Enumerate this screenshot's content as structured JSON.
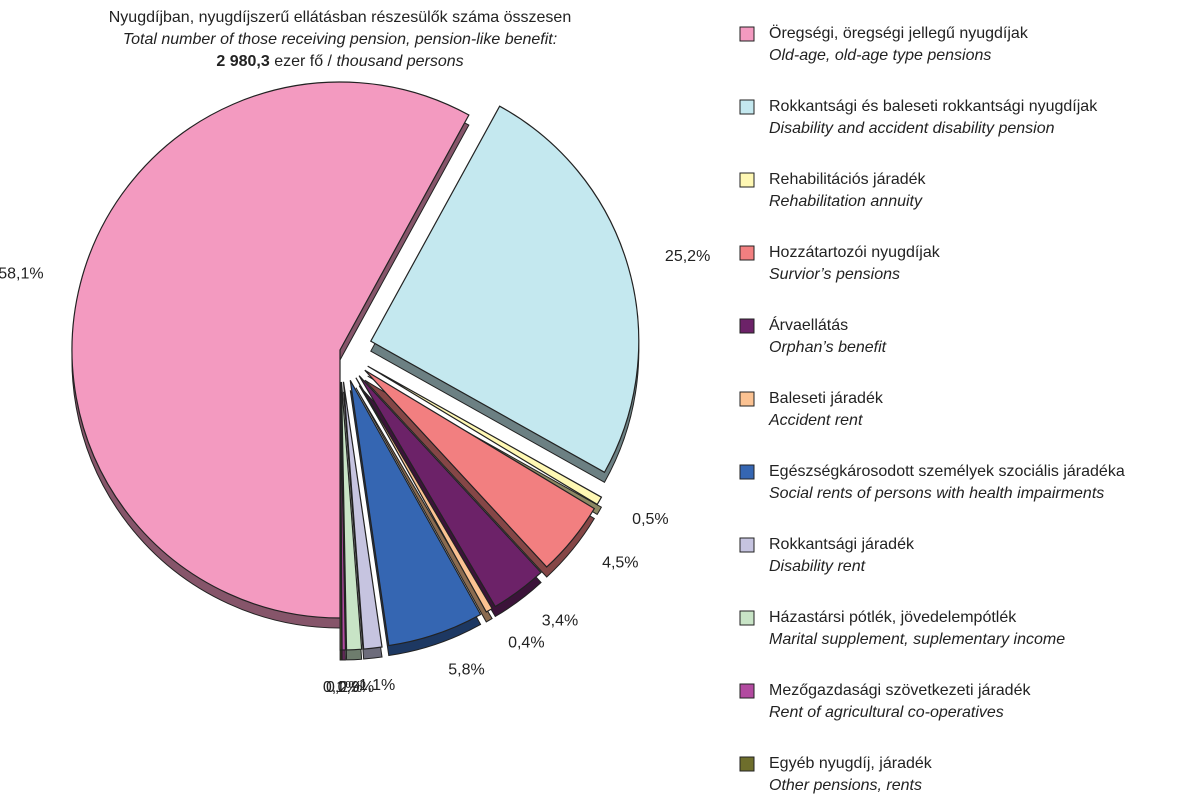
{
  "chart_data": {
    "type": "pie",
    "title": "Nyugdíjban, nyugdíjszerű ellátásban részesülők száma összesen",
    "subtitle": "Total number of those receiving pension, pension-like benefit:",
    "total": "2 980,3",
    "total_unit": "ezer fő /",
    "total_unit_en": "thousand persons",
    "categories": [
      "Öregségi, öregségi jellegű nyugdíjak",
      "Rokkantsági és baleseti rokkantsági  nyugdíjak",
      "Rehabilitációs járadék",
      "Hozzátartozói nyugdíjak",
      "Árvaellátás",
      "Baleseti járadék",
      "Egészségkárosodott személyek szociális járadéka",
      "Rokkantsági járadék",
      "Házastársi pótlék, jövedelempótlék",
      "Mezőgazdasági szövetkezeti járadék",
      "Egyéb nyugdíj, járadék"
    ],
    "categories_en": [
      "Old-age, old-age type pensions",
      "Disability and accident disability pension",
      "Rehabilitation annuity",
      "Survior’s pensions",
      "Orphan’s benefit",
      "Accident rent",
      "Social rents of persons with health impairments",
      "Disability rent",
      "Marital supplement, suplementary income",
      "Rent of agricultural co-operatives",
      "Other pensions, rents"
    ],
    "values": [
      58.1,
      25.2,
      0.5,
      4.5,
      3.4,
      0.4,
      5.8,
      1.1,
      0.9,
      0.2,
      0.1
    ],
    "value_labels": [
      "58,1%",
      "25,2%",
      "0,5%",
      "4,5%",
      "3,4%",
      "0,4%",
      "5,8%",
      "1,1%",
      "0,9%",
      "0,2%",
      "0,1%"
    ],
    "colors": [
      "#f39ac0",
      "#c4e8ef",
      "#fff8b4",
      "#f27f80",
      "#6c2268",
      "#fbc292",
      "#3566b2",
      "#c6c4e0",
      "#c8e4c6",
      "#b24aa0",
      "#6e6e2c"
    ],
    "legend": "right"
  }
}
